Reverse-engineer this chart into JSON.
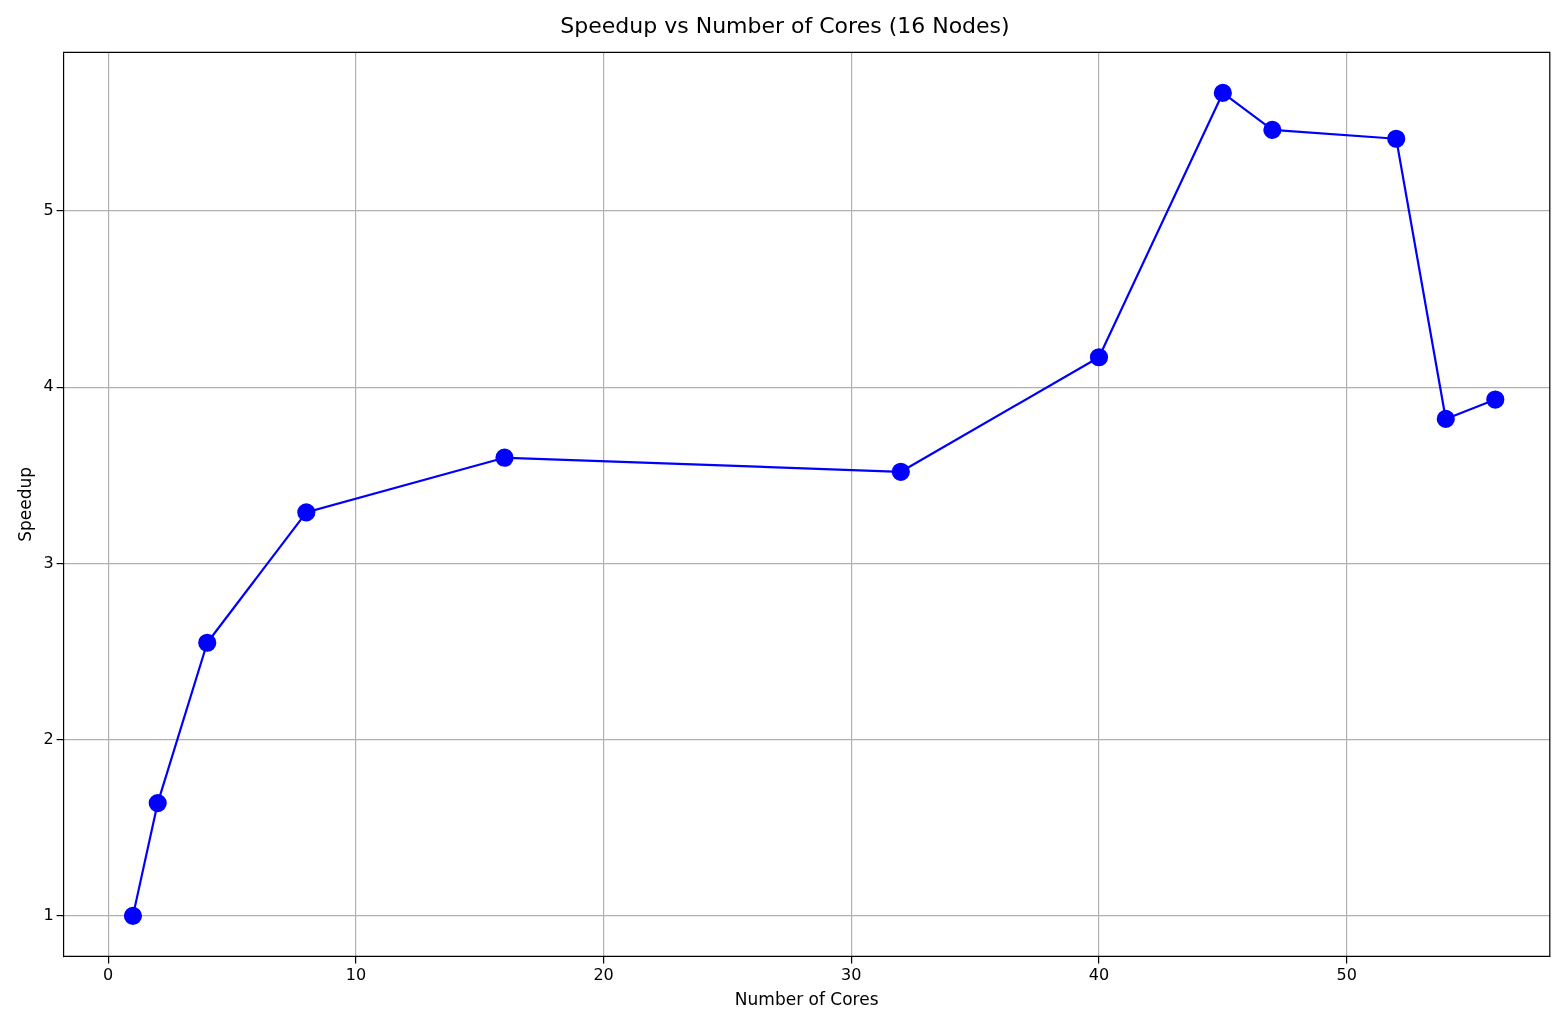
{
  "chart_data": {
    "type": "line",
    "title": "Speedup vs Number of Cores (16 Nodes)",
    "xlabel": "Number of Cores",
    "ylabel": "Speedup",
    "x": [
      1,
      2,
      4,
      8,
      16,
      32,
      40,
      45,
      47,
      52,
      54,
      56
    ],
    "series": [
      {
        "color": "#0000ff",
        "values": [
          1.0,
          1.64,
          2.55,
          3.29,
          3.6,
          3.52,
          4.17,
          5.67,
          5.46,
          5.41,
          3.82,
          3.93
        ]
      }
    ],
    "xlim": [
      -1.8,
      58.2
    ],
    "xticks": [
      0,
      10,
      20,
      30,
      40,
      50
    ],
    "ylim": [
      0.77,
      5.9
    ],
    "yticks": [
      1,
      2,
      3,
      4,
      5
    ],
    "grid": true,
    "legend": false,
    "marker": "circle",
    "line_style": "solid"
  }
}
